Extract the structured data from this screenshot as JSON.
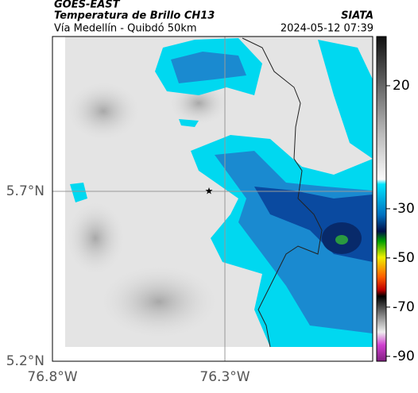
{
  "header": {
    "title": "GOES-EAST",
    "subtitle": "Temperatura de Brillo CH13",
    "source": "SIATA",
    "location": "Vía Medellín - Quibdó 50km",
    "datetime": "2024-05-12 07:39"
  },
  "map": {
    "lat_labels": [
      "5.7°N",
      "5.2°N"
    ],
    "lon_labels": [
      "76.8°W",
      "76.3°W"
    ]
  },
  "colorbar": {
    "lim": [
      40,
      -92
    ],
    "ticks": [
      20,
      -30,
      -50,
      -70,
      -90
    ]
  }
}
